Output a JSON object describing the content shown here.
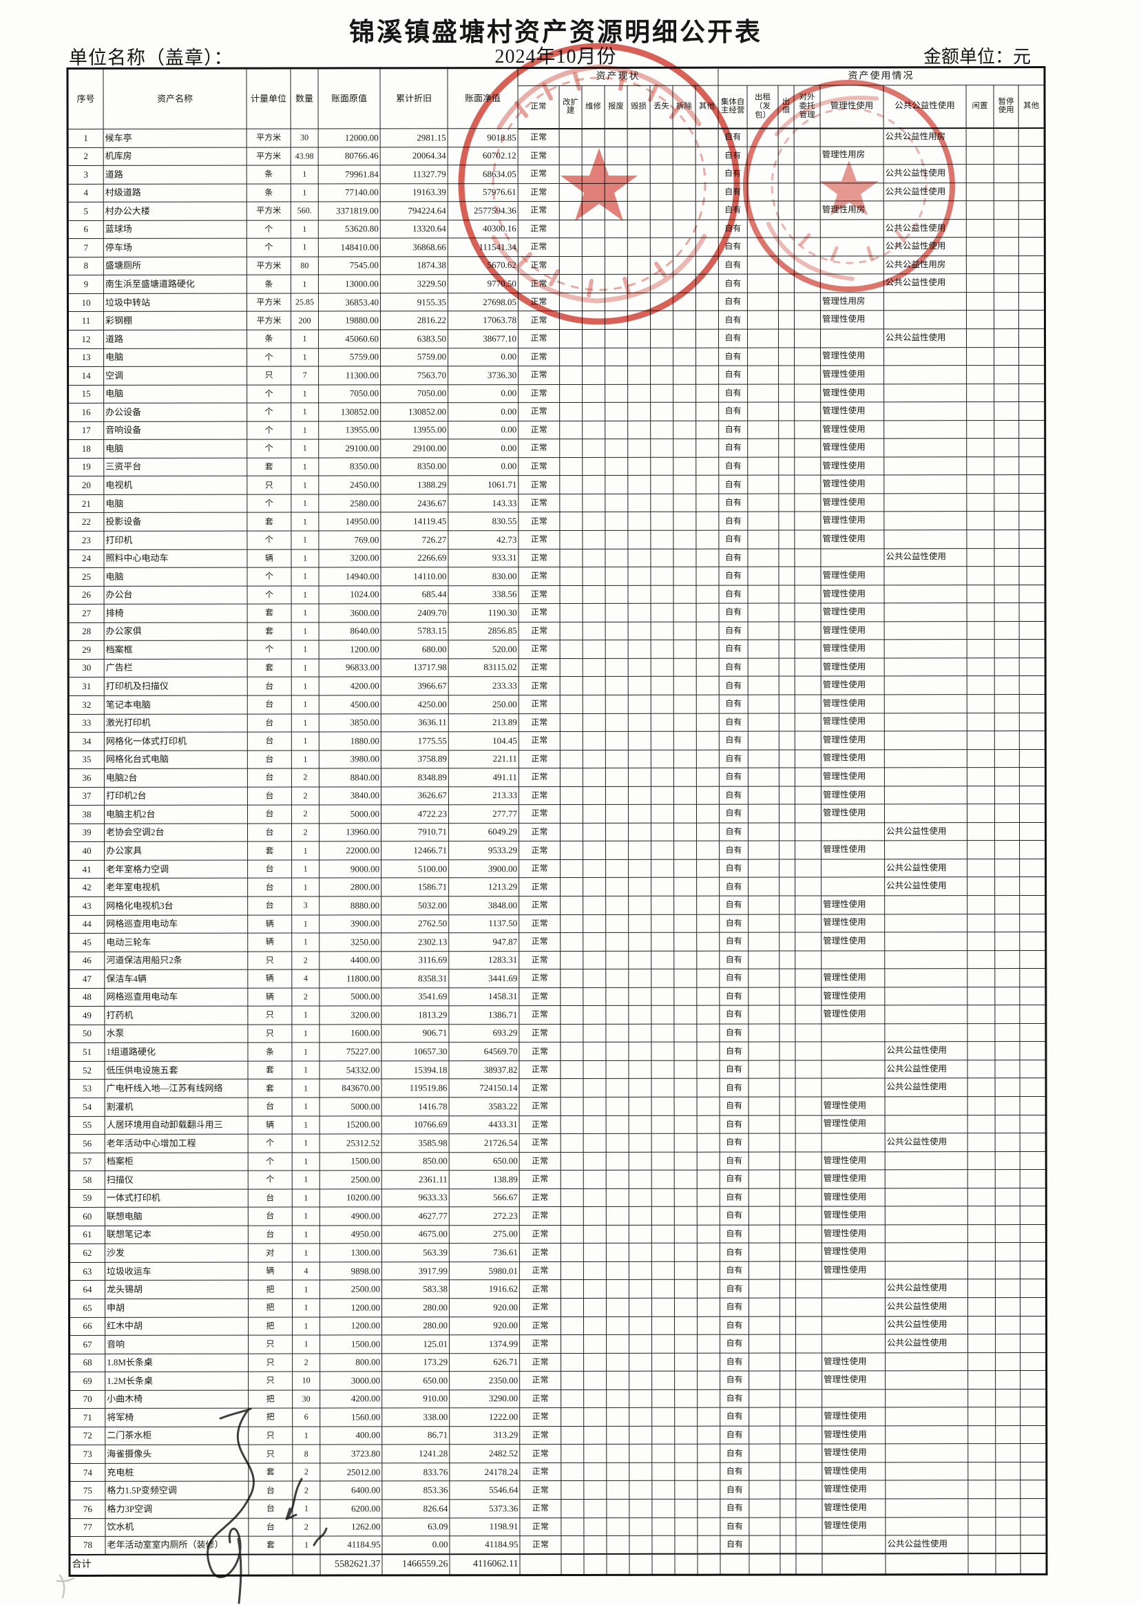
{
  "doc": {
    "title": "锦溪镇盛塘村资产资源明细公开表",
    "date_line": "2024年10月份",
    "unit_label": "单位名称（盖章）：",
    "amount_label": "金额单位：元"
  },
  "stamp": {
    "color": "#cf3527"
  },
  "signature": {
    "color": "#2a2a2c"
  },
  "table": {
    "base_columns": [
      "序号",
      "资产名称",
      "计量单位",
      "数量",
      "账面原值",
      "累计折旧",
      "账面净值"
    ],
    "group_status": {
      "label": "资产现状",
      "columns": [
        "正常",
        "改扩建",
        "维修",
        "报废",
        "毁损",
        "丢失",
        "拆除",
        "其他"
      ]
    },
    "group_usage": {
      "label": "资产使用情况",
      "columns": [
        "集体自主经营",
        "出租（发包）",
        "出借",
        "对外委托管理",
        "管理性使用",
        "公共公益性使用",
        "闲置",
        "暂停使用",
        "其他"
      ]
    },
    "rows": [
      [
        "1",
        "候车亭",
        "平方米",
        "30",
        "12000.00",
        "2981.15",
        "9018.85",
        "正常",
        "自有",
        "",
        "公共公益性用房"
      ],
      [
        "2",
        "机库房",
        "平方米",
        "43.98",
        "80766.46",
        "20064.34",
        "60702.12",
        "正常",
        "自有",
        "管理性用房",
        ""
      ],
      [
        "3",
        "道路",
        "条",
        "1",
        "79961.84",
        "11327.79",
        "68634.05",
        "正常",
        "自有",
        "",
        "公共公益性使用"
      ],
      [
        "4",
        "村级道路",
        "条",
        "1",
        "77140.00",
        "19163.39",
        "57976.61",
        "正常",
        "自有",
        "",
        "公共公益性使用"
      ],
      [
        "5",
        "村办公大楼",
        "平方米",
        "560.",
        "3371819.00",
        "794224.64",
        "2577594.36",
        "正常",
        "自有",
        "管理性用房",
        ""
      ],
      [
        "6",
        "蓝球场",
        "个",
        "1",
        "53620.80",
        "13320.64",
        "40300.16",
        "正常",
        "自有",
        "",
        "公共公益性使用"
      ],
      [
        "7",
        "停车场",
        "个",
        "1",
        "148410.00",
        "36868.66",
        "111541.34",
        "正常",
        "自有",
        "",
        "公共公益性使用"
      ],
      [
        "8",
        "盛塘厕所",
        "平方米",
        "80",
        "7545.00",
        "1874.38",
        "5670.62",
        "正常",
        "自有",
        "",
        "公共公益性用房"
      ],
      [
        "9",
        "南生浜至盛塘道路硬化",
        "条",
        "1",
        "13000.00",
        "3229.50",
        "9770.50",
        "正常",
        "自有",
        "",
        "公共公益性使用"
      ],
      [
        "10",
        "垃圾中转站",
        "平方米",
        "25.85",
        "36853.40",
        "9155.35",
        "27698.05",
        "正常",
        "自有",
        "管理性用房",
        ""
      ],
      [
        "11",
        "彩钢棚",
        "平方米",
        "200",
        "19880.00",
        "2816.22",
        "17063.78",
        "正常",
        "自有",
        "管理性使用",
        ""
      ],
      [
        "12",
        "道路",
        "条",
        "1",
        "45060.60",
        "6383.50",
        "38677.10",
        "正常",
        "自有",
        "",
        "公共公益性使用"
      ],
      [
        "13",
        "电脑",
        "个",
        "1",
        "5759.00",
        "5759.00",
        "0.00",
        "正常",
        "自有",
        "管理性使用",
        ""
      ],
      [
        "14",
        "空调",
        "只",
        "7",
        "11300.00",
        "7563.70",
        "3736.30",
        "正常",
        "自有",
        "管理性使用",
        ""
      ],
      [
        "15",
        "电脑",
        "个",
        "1",
        "7050.00",
        "7050.00",
        "0.00",
        "正常",
        "自有",
        "管理性使用",
        ""
      ],
      [
        "16",
        "办公设备",
        "个",
        "1",
        "130852.00",
        "130852.00",
        "0.00",
        "正常",
        "自有",
        "管理性使用",
        ""
      ],
      [
        "17",
        "音响设备",
        "个",
        "1",
        "13955.00",
        "13955.00",
        "0.00",
        "正常",
        "自有",
        "管理性使用",
        ""
      ],
      [
        "18",
        "电脑",
        "个",
        "1",
        "29100.00",
        "29100.00",
        "0.00",
        "正常",
        "自有",
        "管理性使用",
        ""
      ],
      [
        "19",
        "三资平台",
        "套",
        "1",
        "8350.00",
        "8350.00",
        "0.00",
        "正常",
        "自有",
        "管理性使用",
        ""
      ],
      [
        "20",
        "电视机",
        "只",
        "1",
        "2450.00",
        "1388.29",
        "1061.71",
        "正常",
        "自有",
        "管理性使用",
        ""
      ],
      [
        "21",
        "电脑",
        "个",
        "1",
        "2580.00",
        "2436.67",
        "143.33",
        "正常",
        "自有",
        "管理性使用",
        ""
      ],
      [
        "22",
        "投影设备",
        "套",
        "1",
        "14950.00",
        "14119.45",
        "830.55",
        "正常",
        "自有",
        "管理性使用",
        ""
      ],
      [
        "23",
        "打印机",
        "个",
        "1",
        "769.00",
        "726.27",
        "42.73",
        "正常",
        "自有",
        "管理性使用",
        ""
      ],
      [
        "24",
        "照料中心电动车",
        "辆",
        "1",
        "3200.00",
        "2266.69",
        "933.31",
        "正常",
        "自有",
        "",
        "公共公益性使用"
      ],
      [
        "25",
        "电脑",
        "个",
        "1",
        "14940.00",
        "14110.00",
        "830.00",
        "正常",
        "自有",
        "管理性使用",
        ""
      ],
      [
        "26",
        "办公台",
        "个",
        "1",
        "1024.00",
        "685.44",
        "338.56",
        "正常",
        "自有",
        "管理性使用",
        ""
      ],
      [
        "27",
        "排椅",
        "套",
        "1",
        "3600.00",
        "2409.70",
        "1190.30",
        "正常",
        "自有",
        "管理性使用",
        ""
      ],
      [
        "28",
        "办公家俱",
        "套",
        "1",
        "8640.00",
        "5783.15",
        "2856.85",
        "正常",
        "自有",
        "管理性使用",
        ""
      ],
      [
        "29",
        "档案框",
        "个",
        "1",
        "1200.00",
        "680.00",
        "520.00",
        "正常",
        "自有",
        "管理性使用",
        ""
      ],
      [
        "30",
        "广告栏",
        "套",
        "1",
        "96833.00",
        "13717.98",
        "83115.02",
        "正常",
        "自有",
        "管理性使用",
        ""
      ],
      [
        "31",
        "打印机及扫描仪",
        "台",
        "1",
        "4200.00",
        "3966.67",
        "233.33",
        "正常",
        "自有",
        "管理性使用",
        ""
      ],
      [
        "32",
        "笔记本电脑",
        "台",
        "1",
        "4500.00",
        "4250.00",
        "250.00",
        "正常",
        "自有",
        "管理性使用",
        ""
      ],
      [
        "33",
        "激光打印机",
        "台",
        "1",
        "3850.00",
        "3636.11",
        "213.89",
        "正常",
        "自有",
        "管理性使用",
        ""
      ],
      [
        "34",
        "网格化一体式打印机",
        "台",
        "1",
        "1880.00",
        "1775.55",
        "104.45",
        "正常",
        "自有",
        "管理性使用",
        ""
      ],
      [
        "35",
        "网格化台式电脑",
        "台",
        "1",
        "3980.00",
        "3758.89",
        "221.11",
        "正常",
        "自有",
        "管理性使用",
        ""
      ],
      [
        "36",
        "电脑2台",
        "台",
        "2",
        "8840.00",
        "8348.89",
        "491.11",
        "正常",
        "自有",
        "管理性使用",
        ""
      ],
      [
        "37",
        "打印机2台",
        "台",
        "2",
        "3840.00",
        "3626.67",
        "213.33",
        "正常",
        "自有",
        "管理性使用",
        ""
      ],
      [
        "38",
        "电脑主机2台",
        "台",
        "2",
        "5000.00",
        "4722.23",
        "277.77",
        "正常",
        "自有",
        "管理性使用",
        ""
      ],
      [
        "39",
        "老协会空调2台",
        "台",
        "2",
        "13960.00",
        "7910.71",
        "6049.29",
        "正常",
        "自有",
        "",
        "公共公益性使用"
      ],
      [
        "40",
        "办公家具",
        "套",
        "1",
        "22000.00",
        "12466.71",
        "9533.29",
        "正常",
        "自有",
        "管理性使用",
        ""
      ],
      [
        "41",
        "老年室格力空调",
        "台",
        "1",
        "9000.00",
        "5100.00",
        "3900.00",
        "正常",
        "自有",
        "",
        "公共公益性使用"
      ],
      [
        "42",
        "老年室电视机",
        "台",
        "1",
        "2800.00",
        "1586.71",
        "1213.29",
        "正常",
        "自有",
        "",
        "公共公益性使用"
      ],
      [
        "43",
        "网格化电视机3台",
        "台",
        "3",
        "8880.00",
        "5032.00",
        "3848.00",
        "正常",
        "自有",
        "管理性使用",
        ""
      ],
      [
        "44",
        "网格巡查用电动车",
        "辆",
        "1",
        "3900.00",
        "2762.50",
        "1137.50",
        "正常",
        "自有",
        "管理性使用",
        ""
      ],
      [
        "45",
        "电动三轮车",
        "辆",
        "1",
        "3250.00",
        "2302.13",
        "947.87",
        "正常",
        "自有",
        "管理性使用",
        ""
      ],
      [
        "46",
        "河道保洁用船只2条",
        "只",
        "2",
        "4400.00",
        "3116.69",
        "1283.31",
        "正常",
        "自有",
        "",
        ""
      ],
      [
        "47",
        "保洁车4辆",
        "辆",
        "4",
        "11800.00",
        "8358.31",
        "3441.69",
        "正常",
        "自有",
        "管理性使用",
        ""
      ],
      [
        "48",
        "网格巡查用电动车",
        "辆",
        "2",
        "5000.00",
        "3541.69",
        "1458.31",
        "正常",
        "自有",
        "管理性使用",
        ""
      ],
      [
        "49",
        "打药机",
        "只",
        "1",
        "3200.00",
        "1813.29",
        "1386.71",
        "正常",
        "自有",
        "管理性使用",
        ""
      ],
      [
        "50",
        "水泵",
        "只",
        "1",
        "1600.00",
        "906.71",
        "693.29",
        "正常",
        "自有",
        "",
        ""
      ],
      [
        "51",
        "1组道路硬化",
        "条",
        "1",
        "75227.00",
        "10657.30",
        "64569.70",
        "正常",
        "自有",
        "",
        "公共公益性使用"
      ],
      [
        "52",
        "低压供电设施五套",
        "套",
        "1",
        "54332.00",
        "15394.18",
        "38937.82",
        "正常",
        "自有",
        "",
        "公共公益性使用"
      ],
      [
        "53",
        "广电杆线入地—江苏有线网络",
        "套",
        "1",
        "843670.00",
        "119519.86",
        "724150.14",
        "正常",
        "自有",
        "",
        "公共公益性使用"
      ],
      [
        "54",
        "割灌机",
        "台",
        "1",
        "5000.00",
        "1416.78",
        "3583.22",
        "正常",
        "自有",
        "管理性使用",
        ""
      ],
      [
        "55",
        "人居环境用自动卸载翻斗用三",
        "辆",
        "1",
        "15200.00",
        "10766.69",
        "4433.31",
        "正常",
        "自有",
        "管理性使用",
        ""
      ],
      [
        "56",
        "老年活动中心增加工程",
        "个",
        "1",
        "25312.52",
        "3585.98",
        "21726.54",
        "正常",
        "自有",
        "",
        "公共公益性使用"
      ],
      [
        "57",
        "档案柜",
        "个",
        "1",
        "1500.00",
        "850.00",
        "650.00",
        "正常",
        "自有",
        "管理性使用",
        ""
      ],
      [
        "58",
        "扫描仪",
        "个",
        "1",
        "2500.00",
        "2361.11",
        "138.89",
        "正常",
        "自有",
        "管理性使用",
        ""
      ],
      [
        "59",
        "一体式打印机",
        "台",
        "1",
        "10200.00",
        "9633.33",
        "566.67",
        "正常",
        "自有",
        "管理性使用",
        ""
      ],
      [
        "60",
        "联想电脑",
        "台",
        "1",
        "4900.00",
        "4627.77",
        "272.23",
        "正常",
        "自有",
        "管理性使用",
        ""
      ],
      [
        "61",
        "联想笔记本",
        "台",
        "1",
        "4950.00",
        "4675.00",
        "275.00",
        "正常",
        "自有",
        "管理性使用",
        ""
      ],
      [
        "62",
        "沙发",
        "对",
        "1",
        "1300.00",
        "563.39",
        "736.61",
        "正常",
        "自有",
        "管理性使用",
        ""
      ],
      [
        "63",
        "垃圾收运车",
        "辆",
        "4",
        "9898.00",
        "3917.99",
        "5980.01",
        "正常",
        "自有",
        "管理性使用",
        ""
      ],
      [
        "64",
        "龙头锡胡",
        "把",
        "1",
        "2500.00",
        "583.38",
        "1916.62",
        "正常",
        "自有",
        "",
        "公共公益性使用"
      ],
      [
        "65",
        "申胡",
        "把",
        "1",
        "1200.00",
        "280.00",
        "920.00",
        "正常",
        "自有",
        "",
        "公共公益性使用"
      ],
      [
        "66",
        "红木中胡",
        "把",
        "1",
        "1200.00",
        "280.00",
        "920.00",
        "正常",
        "自有",
        "",
        "公共公益性使用"
      ],
      [
        "67",
        "音响",
        "只",
        "1",
        "1500.00",
        "125.01",
        "1374.99",
        "正常",
        "自有",
        "",
        "公共公益性使用"
      ],
      [
        "68",
        "1.8M长条桌",
        "只",
        "2",
        "800.00",
        "173.29",
        "626.71",
        "正常",
        "自有",
        "管理性使用",
        ""
      ],
      [
        "69",
        "1.2M长条桌",
        "只",
        "10",
        "3000.00",
        "650.00",
        "2350.00",
        "正常",
        "自有",
        "管理性使用",
        ""
      ],
      [
        "70",
        "小曲木椅",
        "把",
        "30",
        "4200.00",
        "910.00",
        "3290.00",
        "正常",
        "自有",
        "",
        ""
      ],
      [
        "71",
        "将军椅",
        "把",
        "6",
        "1560.00",
        "338.00",
        "1222.00",
        "正常",
        "自有",
        "管理性使用",
        ""
      ],
      [
        "72",
        "二门茶水柜",
        "只",
        "1",
        "400.00",
        "86.71",
        "313.29",
        "正常",
        "自有",
        "管理性使用",
        ""
      ],
      [
        "73",
        "海雀摄像头",
        "只",
        "8",
        "3723.80",
        "1241.28",
        "2482.52",
        "正常",
        "自有",
        "管理性使用",
        ""
      ],
      [
        "74",
        "充电桩",
        "套",
        "2",
        "25012.00",
        "833.76",
        "24178.24",
        "正常",
        "自有",
        "管理性使用",
        ""
      ],
      [
        "75",
        "格力1.5P变频空调",
        "台",
        "2",
        "6400.00",
        "853.36",
        "5546.64",
        "正常",
        "自有",
        "管理性使用",
        ""
      ],
      [
        "76",
        "格力3P空调",
        "台",
        "1",
        "6200.00",
        "826.64",
        "5373.36",
        "正常",
        "自有",
        "管理性使用",
        ""
      ],
      [
        "77",
        "饮水机",
        "台",
        "2",
        "1262.00",
        "63.09",
        "1198.91",
        "正常",
        "自有",
        "管理性使用",
        ""
      ],
      [
        "78",
        "老年活动室室内厕所（装修）",
        "套",
        "1",
        "41184.95",
        "0.00",
        "41184.95",
        "正常",
        "自有",
        "",
        "公共公益性使用"
      ]
    ],
    "total": {
      "label": "合计",
      "orig": "5582621.37",
      "dep": "1466559.26",
      "net": "4116062.11"
    }
  }
}
